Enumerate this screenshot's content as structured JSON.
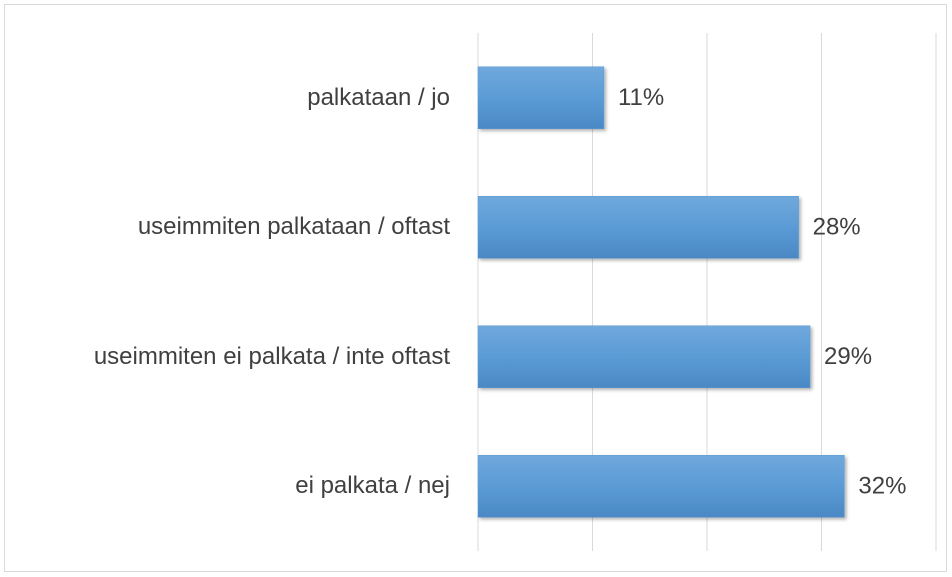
{
  "chart_data": {
    "type": "bar",
    "orientation": "horizontal",
    "categories": [
      "palkataan / jo",
      "useimmiten palkataan / oftast",
      "useimmiten ei palkata / inte oftast",
      "ei palkata / nej"
    ],
    "values": [
      11,
      28,
      29,
      32
    ],
    "value_labels": [
      "11%",
      "28%",
      "29%",
      "32%"
    ],
    "color": "#5b9bd5",
    "xlim": [
      0,
      40
    ],
    "xticks": [
      0,
      10,
      20,
      30,
      40
    ],
    "grid": true
  }
}
